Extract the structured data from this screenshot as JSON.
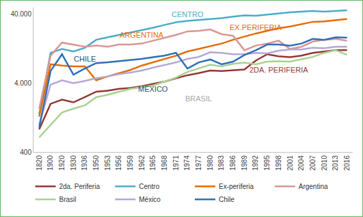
{
  "chart_data": {
    "type": "line",
    "log": "y",
    "grid": false,
    "legend": "bottom",
    "categories": [
      "1820",
      "1900",
      "1920",
      "1930",
      "1936",
      "1950",
      "1953",
      "1956",
      "1959",
      "1962",
      "1965",
      "1968",
      "1971",
      "1974",
      "1977",
      "1980",
      "1983",
      "1986",
      "1989",
      "1992",
      "1995",
      "1998",
      "2001",
      "2004",
      "2007",
      "2010",
      "2013",
      "2016"
    ],
    "ylim": [
      400,
      50000
    ],
    "yticks": [
      400,
      {
        "value": 4000,
        "label": "4.000"
      },
      {
        "value": 40000,
        "label": "40.000"
      }
    ],
    "series": [
      {
        "name": "2da. Periferia",
        "color": "#943634",
        "values": [
          850,
          2000,
          2300,
          2100,
          2500,
          3000,
          3100,
          3300,
          3400,
          3600,
          3900,
          4200,
          4700,
          5200,
          5600,
          6100,
          6000,
          6100,
          6300,
          8500,
          10500,
          9800,
          9500,
          10000,
          11000,
          11500,
          12000,
          12000
        ]
      },
      {
        "name": "Centro",
        "color": "#4bacc6",
        "values": [
          1400,
          11000,
          12500,
          11500,
          13000,
          17000,
          18500,
          20000,
          21500,
          23500,
          25500,
          28000,
          30500,
          32000,
          33000,
          34500,
          35000,
          37000,
          38500,
          38000,
          39500,
          41500,
          42500,
          43500,
          44500,
          43500,
          44500,
          45500
        ]
      },
      {
        "name": "Ex-periferia",
        "color": "#e46c0a",
        "values": [
          1300,
          7500,
          7200,
          7000,
          7000,
          4400,
          5000,
          5600,
          6200,
          7200,
          8000,
          9000,
          10000,
          11500,
          12500,
          13800,
          15000,
          17000,
          19000,
          21000,
          23000,
          25000,
          26500,
          28500,
          31000,
          31500,
          33000,
          34000
        ]
      },
      {
        "name": "Argentina",
        "color": "#d99694",
        "values": [
          1700,
          10000,
          15500,
          14500,
          13500,
          14000,
          13500,
          14500,
          14500,
          15000,
          16500,
          18000,
          20000,
          22500,
          23000,
          24000,
          20500,
          19500,
          12000,
          14000,
          15000,
          16500,
          12500,
          13500,
          16000,
          17000,
          17500,
          16500
        ]
      },
      {
        "name": "Brasil",
        "color": "#a9d18e",
        "values": [
          650,
          1000,
          1500,
          1700,
          1900,
          2500,
          2700,
          3000,
          3300,
          3500,
          3700,
          4200,
          4800,
          5800,
          6500,
          7400,
          7000,
          7600,
          7900,
          7500,
          8200,
          8300,
          8200,
          8800,
          9600,
          11000,
          12000,
          10300
        ]
      },
      {
        "name": "México",
        "color": "#b4a7d6",
        "values": [
          1000,
          3800,
          4400,
          4000,
          4300,
          4700,
          5000,
          5400,
          5700,
          6100,
          6700,
          7300,
          8000,
          9000,
          9600,
          11200,
          11000,
          10500,
          10500,
          11000,
          10800,
          11800,
          12300,
          12300,
          13000,
          12800,
          13500,
          13500
        ]
      },
      {
        "name": "Chile",
        "color": "#2e6fb7",
        "values": [
          900,
          6000,
          10500,
          5300,
          6500,
          7800,
          8000,
          8300,
          8600,
          9000,
          9500,
          10000,
          11000,
          6500,
          8000,
          8800,
          7500,
          8200,
          10200,
          12000,
          14500,
          14500,
          14000,
          15000,
          17500,
          17000,
          18500,
          18300
        ]
      }
    ],
    "annotations": [
      {
        "text": "CENTRO",
        "x": "1974",
        "y": 40000,
        "color": "#4bacc6"
      },
      {
        "text": "ARGENTINA",
        "x": "1962",
        "y": 20000,
        "color": "#e46c0a"
      },
      {
        "text": "EX.PERIFERIA",
        "x": "1992",
        "y": 26000,
        "color": "#e46c0a"
      },
      {
        "text": "CHILE",
        "x": "1936",
        "y": 9000,
        "color": "#1f4e79"
      },
      {
        "text": "MÉXICO",
        "x": "1965",
        "y": 3300,
        "color": "#1f4e79"
      },
      {
        "text": "BRASIL",
        "x": "1977",
        "y": 2400,
        "color": "#a6a6a6"
      },
      {
        "text": "2DA. PERIFERIA",
        "x": "1998",
        "y": 6200,
        "color": "#943634"
      }
    ]
  }
}
